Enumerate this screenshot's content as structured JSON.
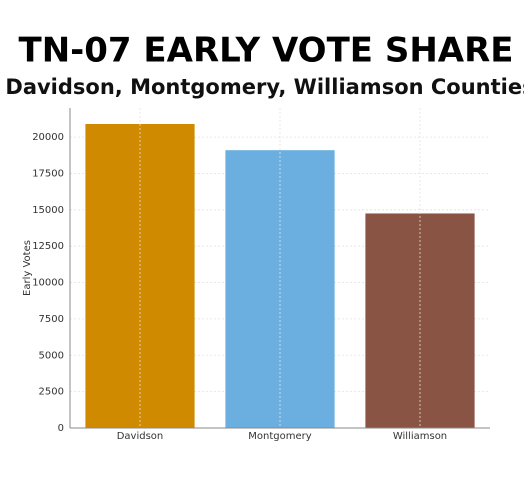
{
  "chart_data": {
    "type": "bar",
    "title": "TN-07 EARLY VOTE SHARE",
    "subtitle": "Davidson, Montgomery, Williamson Counties",
    "y_label": "Early Votes",
    "categories": [
      "Davidson",
      "Montgomery",
      "Williamson"
    ],
    "values": [
      20900,
      19100,
      14750
    ],
    "colors": [
      "#d08a00",
      "#6aafdf",
      "#8a5445"
    ],
    "ylim": [
      0,
      22000
    ],
    "yticks": [
      0,
      2500,
      5000,
      7500,
      10000,
      12500,
      15000,
      17500,
      20000
    ],
    "grid": true
  }
}
